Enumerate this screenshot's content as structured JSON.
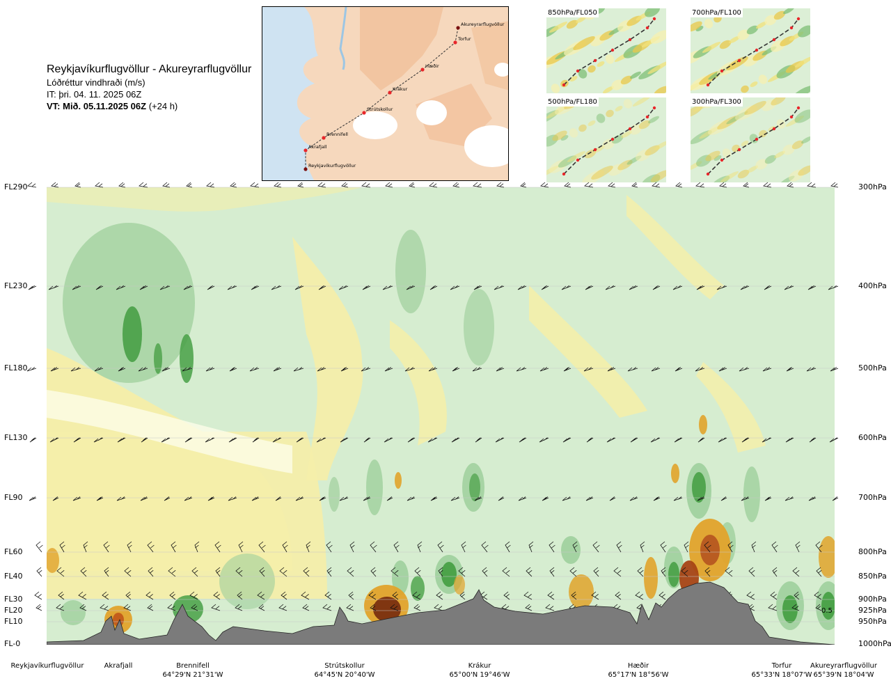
{
  "header": {
    "route": "Reykjavíkurflugvöllur - Akureyrarflugvöllur",
    "parameter": "Lóðréttur vindhraði (m/s)",
    "it": "IT: þri. 04. 11. 2025 06Z",
    "vt_bold": "VT: Mið. 05.11.2025 06Z",
    "vt_lead": "(+24 h)"
  },
  "route_map": {
    "points": [
      {
        "name": "Akureyrarflugvöllur"
      },
      {
        "name": "Torfur"
      },
      {
        "name": "Hæðir"
      },
      {
        "name": "Krákur"
      },
      {
        "name": "Strútskollur"
      },
      {
        "name": "Brennifell"
      },
      {
        "name": "Akrafjall"
      },
      {
        "name": "Reykjavíkurflugvöllur"
      }
    ],
    "colors": {
      "sea": "#cfe3f2",
      "land": "#f6d8bd",
      "glacier": "#ffffff",
      "route": "#333333",
      "point": "#e8262a"
    }
  },
  "level_maps": [
    {
      "label": "850hPa/FL050"
    },
    {
      "label": "700hPa/FL100"
    },
    {
      "label": "500hPa/FL180"
    },
    {
      "label": "300hPa/FL300"
    }
  ],
  "chart_data": {
    "type": "heatmap",
    "title": "Reykjavíkurflugvöllur - Akureyrarflugvöllur",
    "subtitle": "Lóðréttur vindhraði (m/s)",
    "y_levels": [
      {
        "fl": "FL290",
        "hpa": "300hPa"
      },
      {
        "fl": "FL230",
        "hpa": "400hPa"
      },
      {
        "fl": "FL180",
        "hpa": "500hPa"
      },
      {
        "fl": "FL130",
        "hpa": "600hPa"
      },
      {
        "fl": "FL90",
        "hpa": "700hPa"
      },
      {
        "fl": "FL60",
        "hpa": "800hPa"
      },
      {
        "fl": "FL40",
        "hpa": "850hPa"
      },
      {
        "fl": "FL30",
        "hpa": "900hPa"
      },
      {
        "fl": "FL20",
        "hpa": "925hPa"
      },
      {
        "fl": "FL10",
        "hpa": "950hPa"
      },
      {
        "fl": "FL-0",
        "hpa": "1000hPa"
      }
    ],
    "waypoints": [
      {
        "name": "Reykjavíkurflugvöllur",
        "coord": ""
      },
      {
        "name": "Akrafjall",
        "coord": ""
      },
      {
        "name": "Brennifell",
        "coord": "64°29'N 21°31'W"
      },
      {
        "name": "Strútskollur",
        "coord": "64°45'N 20°40'W"
      },
      {
        "name": "Krákur",
        "coord": "65°00'N 19°46'W"
      },
      {
        "name": "Hæðir",
        "coord": "65°17'N 18°56'W"
      },
      {
        "name": "Torfur",
        "coord": "65°33'N 18°07'W"
      },
      {
        "name": "Akureyrarflugvöllur",
        "coord": "65°39'N 18°04'W"
      }
    ],
    "annotation": "0.5",
    "colors": {
      "strong_down": "#7a2f10",
      "down": "#e1a32b",
      "weak_down": "#f4eeaa",
      "neutral": "#fdfde8",
      "weak_up": "#d6edd0",
      "up": "#9fcf9c",
      "strong_up": "#48a046",
      "terrain": "#7b7b7b"
    }
  }
}
